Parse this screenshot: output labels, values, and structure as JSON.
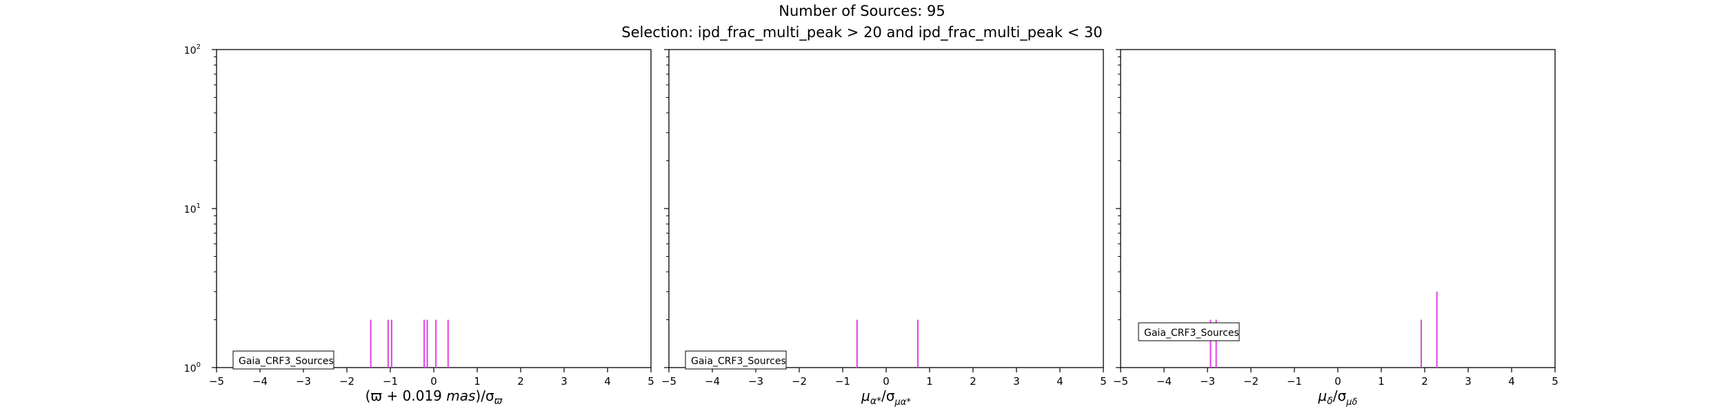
{
  "suptitle": "Number of Sources: 95",
  "subtitle": "Selection: ipd_frac_multi_peak > 20 and ipd_frac_multi_peak < 30",
  "chart_data": [
    {
      "type": "histogram",
      "x_tick_labels": [
        "−5",
        "−4",
        "−3",
        "−2",
        "−1",
        "0",
        "1",
        "2",
        "3",
        "4",
        "5"
      ],
      "y_tick_labels": [
        "10",
        "10",
        "10"
      ],
      "y_tick_exponents": [
        "0",
        "1",
        "2"
      ],
      "xlim": [
        -5,
        5
      ],
      "ylim": [
        1,
        100
      ],
      "yscale": "log",
      "color": "#e040e8",
      "legend_label": "Gaia_CRF3_Sources",
      "legend_placement": "lower-left",
      "xlabel": "(ϖ + 0.019 mas)/σϖ",
      "xlabel_main": "(ϖ + 0.019 ",
      "xlabel_unit": "mas",
      "xlabel_end": ")/σ",
      "xlabel_sub": "ϖ",
      "bars": [
        {
          "x": -1.45,
          "count": 2
        },
        {
          "x": -1.05,
          "count": 2
        },
        {
          "x": -0.97,
          "count": 2
        },
        {
          "x": -0.22,
          "count": 2
        },
        {
          "x": -0.15,
          "count": 2
        },
        {
          "x": 0.05,
          "count": 2
        },
        {
          "x": 0.33,
          "count": 2
        }
      ]
    },
    {
      "type": "histogram",
      "x_tick_labels": [
        "−5",
        "−4",
        "−3",
        "−2",
        "−1",
        "0",
        "1",
        "2",
        "3",
        "4",
        "5"
      ],
      "xlim": [
        -5,
        5
      ],
      "ylim": [
        1,
        100
      ],
      "yscale": "log",
      "color": "#e040e8",
      "legend_label": "Gaia_CRF3_Sources",
      "legend_placement": "lower-left",
      "xlabel": "μα*/σμα*",
      "xlabel_main": "μ",
      "xlabel_sub1": "α*",
      "xlabel_mid": "/σ",
      "xlabel_sub2": "μα*",
      "bars": [
        {
          "x": -0.67,
          "count": 2
        },
        {
          "x": 0.73,
          "count": 2
        }
      ]
    },
    {
      "type": "histogram",
      "x_tick_labels": [
        "−5",
        "−4",
        "−3",
        "−2",
        "−1",
        "0",
        "1",
        "2",
        "3",
        "4",
        "5"
      ],
      "xlim": [
        -5,
        5
      ],
      "ylim": [
        1,
        100
      ],
      "yscale": "log",
      "color": "#e040e8",
      "legend_label": "Gaia_CRF3_Sources",
      "legend_placement": "lower-left",
      "xlabel": "μδ/σμδ",
      "xlabel_main": "μ",
      "xlabel_sub1": "δ",
      "xlabel_mid": "/σ",
      "xlabel_sub2": "μδ",
      "bars": [
        {
          "x": -2.93,
          "count": 2
        },
        {
          "x": -2.8,
          "count": 2
        },
        {
          "x": 1.92,
          "count": 2
        },
        {
          "x": 2.28,
          "count": 3
        }
      ]
    }
  ]
}
